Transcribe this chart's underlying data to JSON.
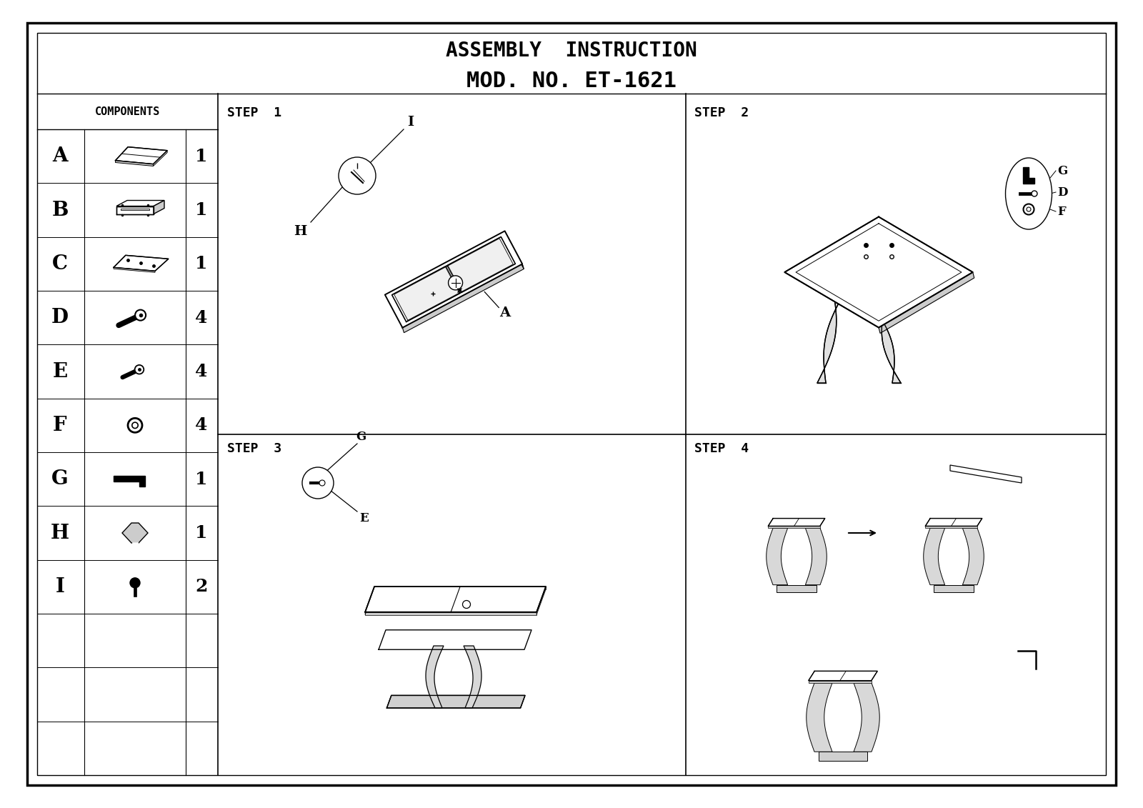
{
  "title_line1": "ASSEMBLY  INSTRUCTION",
  "title_line2": "MOD. NO. ET-1621",
  "bg_color": "#ffffff",
  "border_color": "#000000",
  "components": [
    "A",
    "B",
    "C",
    "D",
    "E",
    "F",
    "G",
    "H",
    "I"
  ],
  "quantities": [
    "1",
    "1",
    "1",
    "4",
    "4",
    "4",
    "1",
    "1",
    "2"
  ],
  "step_labels": [
    "STEP  1",
    "STEP  2",
    "STEP  3",
    "STEP  4"
  ],
  "font_color": "#000000",
  "line_color": "#000000",
  "title_fontsize": 20,
  "step_fontsize": 13,
  "comp_letter_fontsize": 20,
  "qty_fontsize": 18
}
